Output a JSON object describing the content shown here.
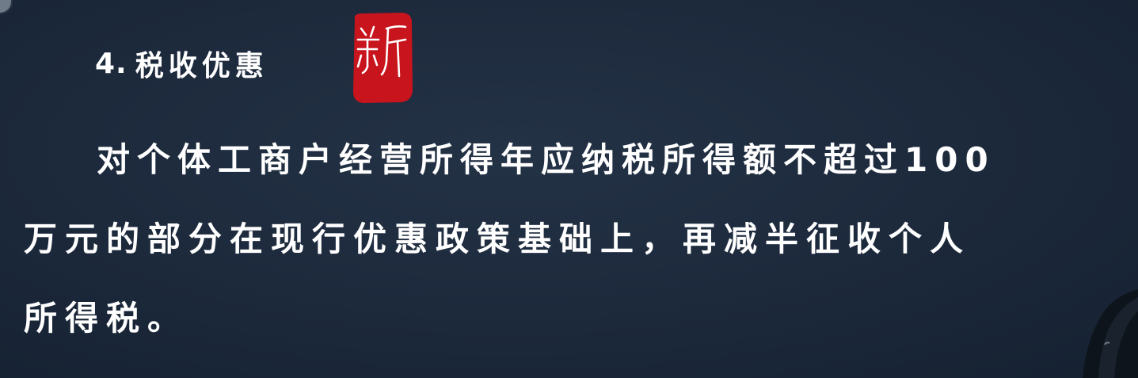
{
  "heading": {
    "number": "4.",
    "title": "税收优惠"
  },
  "badge": {
    "label": "新",
    "color": "#c8141c"
  },
  "paragraph": {
    "lines": [
      "对个体工商户经营所得年应纳税所得额不超过100",
      "万元的部分在现行优惠政策基础上，再减半征收个人",
      "所得税。"
    ]
  },
  "colors": {
    "background": "#1c293b",
    "text": "#ffffff"
  }
}
